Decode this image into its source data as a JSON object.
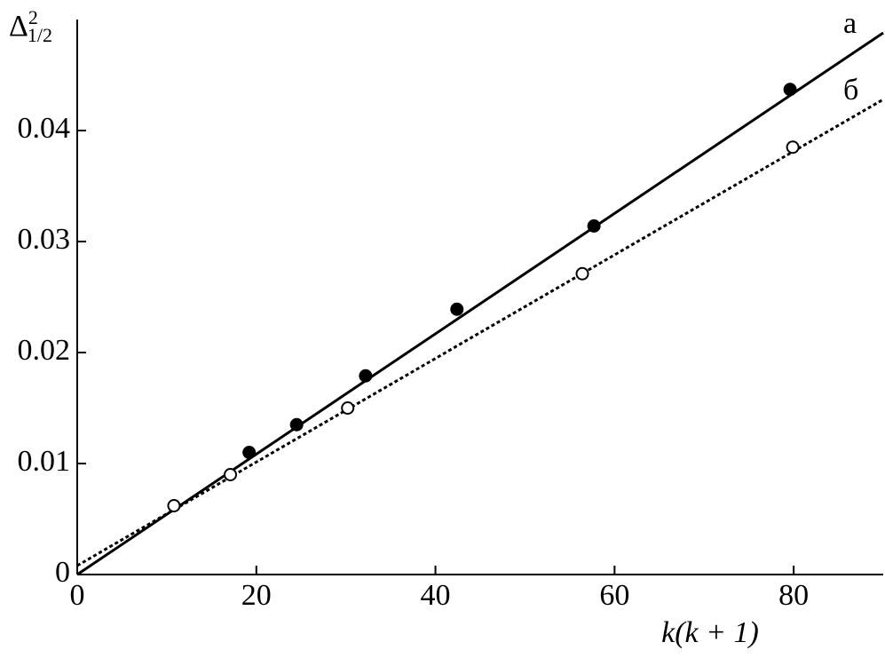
{
  "chart_data": {
    "type": "scatter",
    "x_label": "k(k + 1)",
    "y_label": {
      "base": "Δ",
      "sup": "2",
      "sub": "1/2"
    },
    "xlim": [
      0,
      90
    ],
    "ylim": [
      0,
      0.05
    ],
    "xticks": [
      0,
      20,
      40,
      60,
      80
    ],
    "yticks": [
      0,
      0.01,
      0.02,
      0.03,
      0.04
    ],
    "series": [
      {
        "name": "а",
        "color": "#000000",
        "marker": "filled",
        "line_style": "solid",
        "x": [
          19.2,
          24.5,
          32.2,
          42.4,
          57.7,
          79.6
        ],
        "values": [
          0.011,
          0.0135,
          0.0179,
          0.0239,
          0.0314,
          0.0437
        ],
        "fit": {
          "x": [
            0,
            90
          ],
          "values": [
            0,
            0.0488
          ]
        }
      },
      {
        "name": "б",
        "color": "#000000",
        "marker": "open",
        "line_style": "dotted",
        "x": [
          10.8,
          17.1,
          30.2,
          56.4,
          79.9
        ],
        "values": [
          0.0062,
          0.009,
          0.015,
          0.0271,
          0.0385
        ],
        "fit": {
          "x": [
            0,
            90
          ],
          "values": [
            0.0008,
            0.0428
          ]
        }
      }
    ]
  }
}
